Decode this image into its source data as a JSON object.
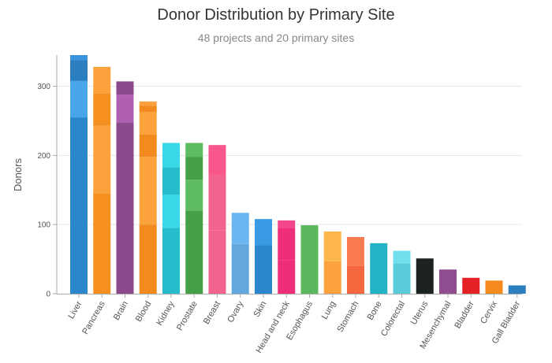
{
  "chart_data": {
    "type": "bar",
    "title": "Donor Distribution by Primary Site",
    "subtitle": "48 projects and 20 primary sites",
    "xlabel": "",
    "ylabel": "Donors",
    "ylim": [
      0,
      345
    ],
    "yticks": [
      0,
      100,
      200,
      300
    ],
    "grid": true,
    "stacked": true,
    "categories": [
      "Liver",
      "Pancreas",
      "Brain",
      "Blood",
      "Kidney",
      "Prostate",
      "Breast",
      "Ovary",
      "Skin",
      "Head and neck",
      "Esophagus",
      "Lung",
      "Stomach",
      "Bone",
      "Colorectal",
      "Uterus",
      "Mesenchymal",
      "Bladder",
      "Cervix",
      "Gall Bladder"
    ],
    "totals": [
      345,
      328,
      307,
      278,
      218,
      218,
      215,
      117,
      108,
      106,
      99,
      90,
      82,
      73,
      62,
      51,
      35,
      23,
      19,
      12
    ],
    "segments": [
      [
        {
          "value": 255,
          "color": "#2b87cc"
        },
        {
          "value": 53,
          "color": "#4aa6ea"
        },
        {
          "value": 30,
          "color": "#2b7ec0"
        },
        {
          "value": 7,
          "color": "#3a93dc"
        }
      ],
      [
        {
          "value": 145,
          "color": "#f59020"
        },
        {
          "value": 98,
          "color": "#fca23c"
        },
        {
          "value": 47,
          "color": "#f59020"
        },
        {
          "value": 38,
          "color": "#fca23c"
        }
      ],
      [
        {
          "value": 248,
          "color": "#8a4a8c"
        },
        {
          "value": 40,
          "color": "#b060b2"
        },
        {
          "value": 19,
          "color": "#8a4a8c"
        }
      ],
      [
        {
          "value": 100,
          "color": "#f28a1f"
        },
        {
          "value": 98,
          "color": "#fca23c"
        },
        {
          "value": 32,
          "color": "#f28a1f"
        },
        {
          "value": 33,
          "color": "#fca23c"
        },
        {
          "value": 9,
          "color": "#f28a1f"
        },
        {
          "value": 6,
          "color": "#fca23c"
        }
      ],
      [
        {
          "value": 95,
          "color": "#26bccc"
        },
        {
          "value": 48,
          "color": "#38d8e6"
        },
        {
          "value": 40,
          "color": "#26bccc"
        },
        {
          "value": 35,
          "color": "#38d8e6"
        }
      ],
      [
        {
          "value": 120,
          "color": "#43a047"
        },
        {
          "value": 45,
          "color": "#5cbc5f"
        },
        {
          "value": 33,
          "color": "#43a047"
        },
        {
          "value": 20,
          "color": "#5cbc5f"
        }
      ],
      [
        {
          "value": 92,
          "color": "#f2638e"
        },
        {
          "value": 80,
          "color": "#f2638e"
        },
        {
          "value": 43,
          "color": "#f7578a"
        }
      ],
      [
        {
          "value": 72,
          "color": "#63a8dc"
        },
        {
          "value": 45,
          "color": "#6bb6f0"
        }
      ],
      [
        {
          "value": 70,
          "color": "#2b87cc"
        },
        {
          "value": 38,
          "color": "#3a9be4"
        }
      ],
      [
        {
          "value": 48,
          "color": "#ef2e79"
        },
        {
          "value": 47,
          "color": "#ef2e79"
        },
        {
          "value": 11,
          "color": "#f2478a"
        }
      ],
      [
        {
          "value": 99,
          "color": "#5cb85c"
        }
      ],
      [
        {
          "value": 47,
          "color": "#fca23c"
        },
        {
          "value": 43,
          "color": "#fdb64e"
        }
      ],
      [
        {
          "value": 40,
          "color": "#f5683f"
        },
        {
          "value": 42,
          "color": "#fa7b4f"
        }
      ],
      [
        {
          "value": 73,
          "color": "#22b3c6"
        }
      ],
      [
        {
          "value": 44,
          "color": "#5acbd8"
        },
        {
          "value": 18,
          "color": "#6fe0ec"
        }
      ],
      [
        {
          "value": 51,
          "color": "#1c2220"
        }
      ],
      [
        {
          "value": 35,
          "color": "#8e4e8f"
        }
      ],
      [
        {
          "value": 23,
          "color": "#e42225"
        }
      ],
      [
        {
          "value": 19,
          "color": "#f58a1f"
        }
      ],
      [
        {
          "value": 12,
          "color": "#2b7ec0"
        }
      ]
    ]
  },
  "colors": {
    "axis": "#aaaaaa",
    "grid": "#e6e6e6",
    "text": "#555555"
  }
}
